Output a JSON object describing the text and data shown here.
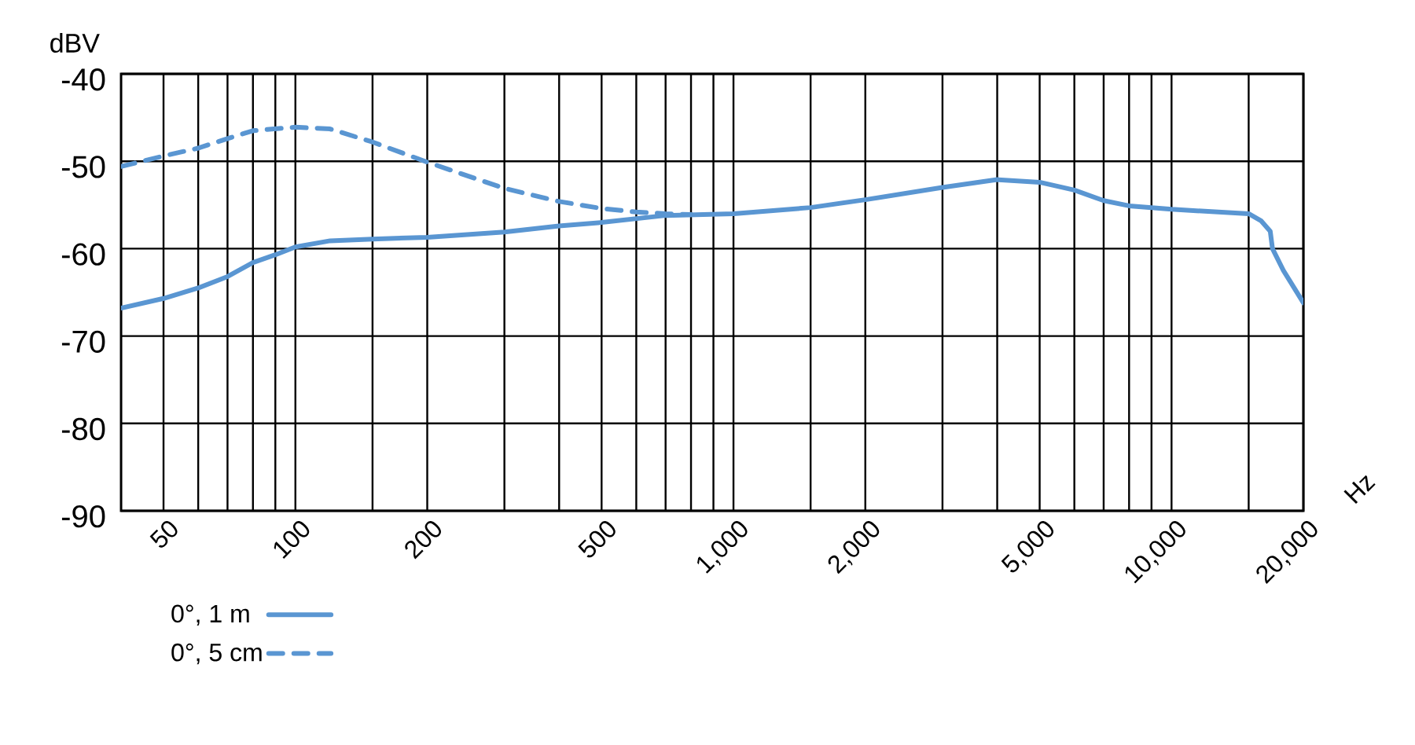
{
  "chart_data": {
    "type": "line",
    "xlabel": "Hz",
    "ylabel": "dBV",
    "log": "x",
    "grid": true,
    "legend": "bottom left",
    "marker": "none",
    "xlim": [
      40,
      20000
    ],
    "ylim": [
      -90,
      -40
    ],
    "xticks": [
      50,
      {
        "value": 60,
        "label": null
      },
      {
        "value": 70,
        "label": null
      },
      {
        "value": 80,
        "label": null
      },
      {
        "value": 90,
        "label": null
      },
      100,
      {
        "value": 150,
        "label": null
      },
      200,
      {
        "value": 300,
        "label": null
      },
      {
        "value": 400,
        "label": null
      },
      500,
      {
        "value": 600,
        "label": null
      },
      {
        "value": 700,
        "label": null
      },
      {
        "value": 800,
        "label": null
      },
      {
        "value": 900,
        "label": null
      },
      {
        "value": 1000,
        "label": "1,000"
      },
      {
        "value": 1500,
        "label": null
      },
      {
        "value": 2000,
        "label": "2,000"
      },
      {
        "value": 3000,
        "label": null
      },
      {
        "value": 4000,
        "label": null
      },
      {
        "value": 5000,
        "label": "5,000"
      },
      {
        "value": 6000,
        "label": null
      },
      {
        "value": 7000,
        "label": null
      },
      {
        "value": 8000,
        "label": null
      },
      {
        "value": 9000,
        "label": null
      },
      {
        "value": 10000,
        "label": "10,000"
      },
      {
        "value": 15000,
        "label": null
      },
      {
        "value": 20000,
        "label": "20,000"
      }
    ],
    "yticks": [
      -90,
      -80,
      -70,
      -60,
      -50,
      -40
    ],
    "series": [
      {
        "name": "0°, 1 m",
        "color": "#5a96d2",
        "line_style": "solid",
        "x": [
          40,
          50,
          60,
          70,
          80,
          90,
          100,
          120,
          150,
          200,
          300,
          400,
          500,
          700,
          1000,
          1500,
          2000,
          3000,
          4000,
          5000,
          6000,
          7000,
          8000,
          10000,
          15000,
          16000,
          16800,
          17000,
          18000,
          20000
        ],
        "values": [
          -66.8,
          -65.7,
          -64.5,
          -63.2,
          -61.6,
          -60.7,
          -59.8,
          -59.1,
          -58.9,
          -58.7,
          -58.1,
          -57.4,
          -57.0,
          -56.2,
          -56.0,
          -55.3,
          -54.4,
          -53.0,
          -52.1,
          -52.4,
          -53.3,
          -54.5,
          -55.1,
          -55.5,
          -56.0,
          -56.8,
          -58.0,
          -60.0,
          -62.5,
          -66.2
        ]
      },
      {
        "name": "0°, 5 cm",
        "color": "#5a96d2",
        "line_style": "dashed",
        "x": [
          40,
          50,
          60,
          70,
          80,
          100,
          120,
          150,
          200,
          300,
          400,
          500,
          600,
          700,
          800
        ],
        "values": [
          -50.6,
          -49.4,
          -48.5,
          -47.4,
          -46.5,
          -46.1,
          -46.3,
          -47.8,
          -50.1,
          -53.1,
          -54.6,
          -55.4,
          -55.8,
          -56.0,
          -56.1
        ]
      }
    ]
  }
}
